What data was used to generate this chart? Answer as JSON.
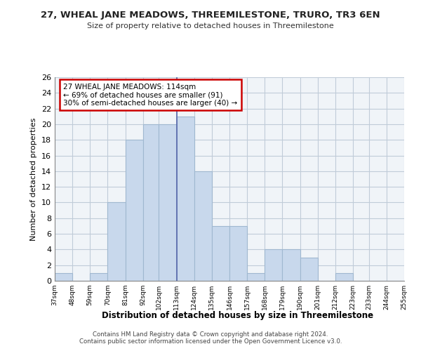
{
  "title1": "27, WHEAL JANE MEADOWS, THREEMILESTONE, TRURO, TR3 6EN",
  "title2": "Size of property relative to detached houses in Threemilestone",
  "xlabel": "Distribution of detached houses by size in Threemilestone",
  "ylabel": "Number of detached properties",
  "footer1": "Contains HM Land Registry data © Crown copyright and database right 2024.",
  "footer2": "Contains public sector information licensed under the Open Government Licence v3.0.",
  "annotation_line1": "27 WHEAL JANE MEADOWS: 114sqm",
  "annotation_line2": "← 69% of detached houses are smaller (91)",
  "annotation_line3": "30% of semi-detached houses are larger (40) →",
  "bar_edges": [
    37,
    48,
    59,
    70,
    81,
    92,
    102,
    113,
    124,
    135,
    146,
    157,
    168,
    179,
    190,
    201,
    212,
    223,
    233,
    244,
    255
  ],
  "bar_heights": [
    1,
    0,
    1,
    10,
    18,
    20,
    20,
    21,
    14,
    7,
    7,
    1,
    4,
    4,
    3,
    0,
    1,
    0,
    0,
    0
  ],
  "bar_color": "#c8d8ec",
  "bar_edge_color": "#a0b8d0",
  "vline_x": 113,
  "vline_color": "#5566aa",
  "ylim": [
    0,
    26
  ],
  "yticks": [
    0,
    2,
    4,
    6,
    8,
    10,
    12,
    14,
    16,
    18,
    20,
    22,
    24,
    26
  ],
  "xtick_labels": [
    "37sqm",
    "48sqm",
    "59sqm",
    "70sqm",
    "81sqm",
    "92sqm",
    "102sqm",
    "113sqm",
    "124sqm",
    "135sqm",
    "146sqm",
    "157sqm",
    "168sqm",
    "179sqm",
    "190sqm",
    "201sqm",
    "212sqm",
    "223sqm",
    "233sqm",
    "244sqm",
    "255sqm"
  ],
  "annotation_box_edge_color": "#cc0000",
  "background_color": "#ffffff",
  "plot_bg_color": "#f0f4f8",
  "grid_color": "#c0ccd8"
}
